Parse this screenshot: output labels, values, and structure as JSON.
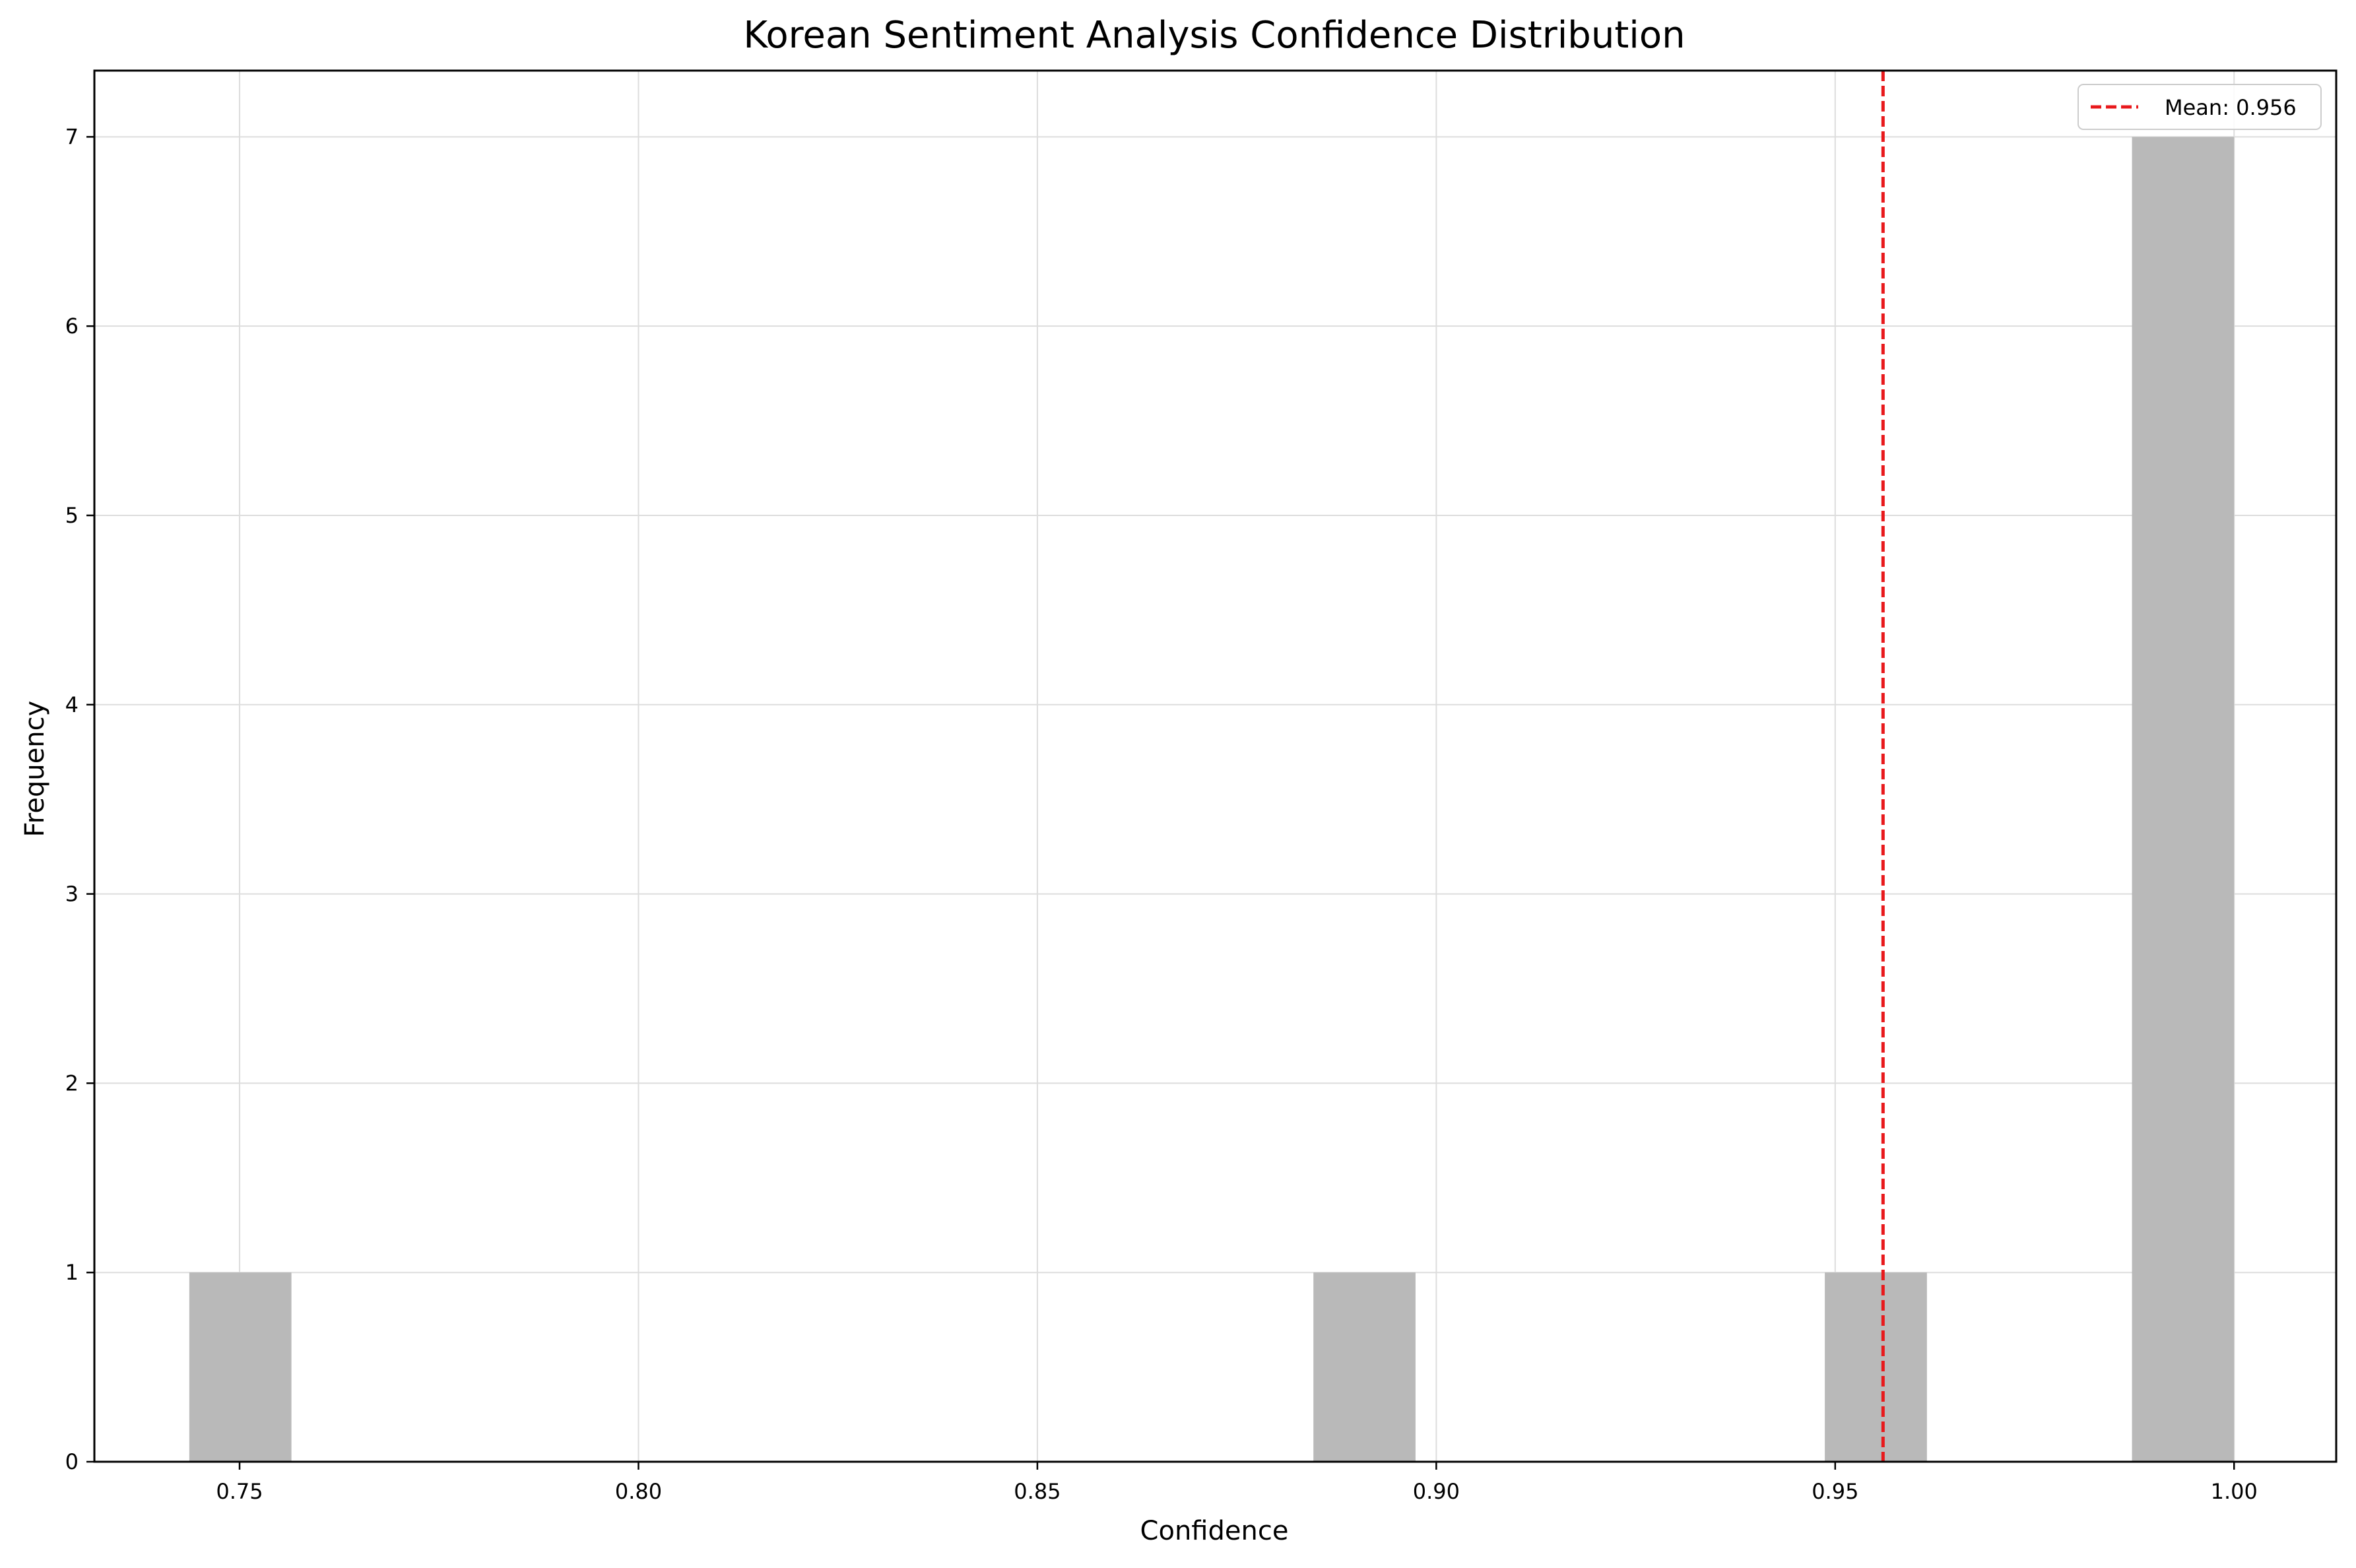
{
  "chart_data": {
    "type": "bar",
    "title": "Korean Sentiment Analysis Confidence Distribution",
    "xlabel": "Confidence",
    "ylabel": "Frequency",
    "xlim": [
      0.7318,
      1.0128
    ],
    "ylim": [
      0,
      7.35
    ],
    "xticks": [
      "0.75",
      "0.80",
      "0.85",
      "0.90",
      "0.95",
      "1.00"
    ],
    "yticks": [
      "0",
      "1",
      "2",
      "3",
      "4",
      "5",
      "6",
      "7"
    ],
    "grid": true,
    "legend_position": "top-right",
    "bin_width": 0.0128,
    "bars": [
      {
        "x_start": 0.7437,
        "x_end": 0.7565,
        "count": 1
      },
      {
        "x_start": 0.8846,
        "x_end": 0.8974,
        "count": 1
      },
      {
        "x_start": 0.9487,
        "x_end": 0.9615,
        "count": 1
      },
      {
        "x_start": 0.9872,
        "x_end": 1.0,
        "count": 7
      }
    ],
    "mean_line": {
      "value": 0.956,
      "label": "Mean: 0.956",
      "color": "#e8191c",
      "style": "dashed"
    },
    "bar_color": "#b9b9b9"
  }
}
